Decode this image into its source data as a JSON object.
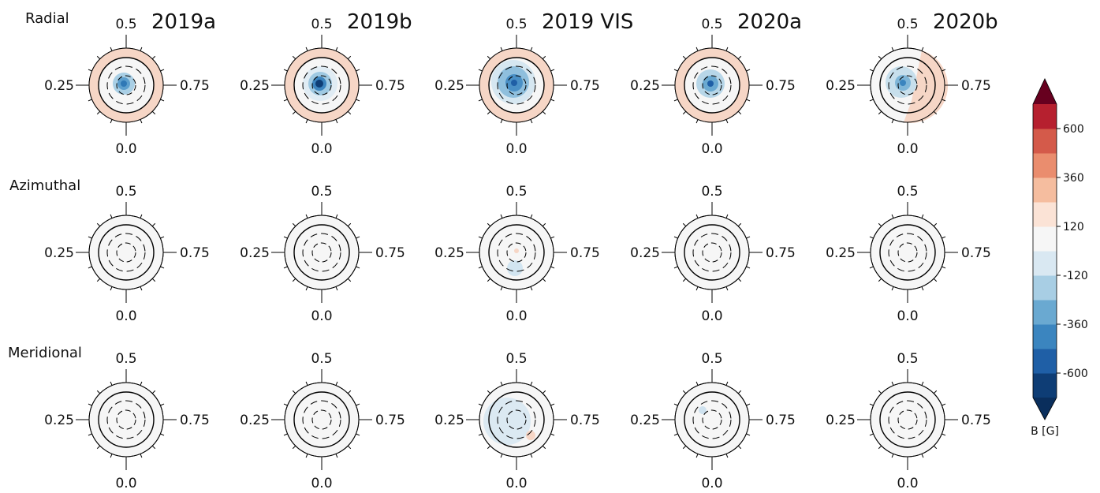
{
  "columns": [
    "2019a",
    "2019b",
    "2019 VIS",
    "2020a",
    "2020b"
  ],
  "rows": [
    "Radial",
    "Azimuthal",
    "Meridional"
  ],
  "phase_labels": {
    "top": "0.5",
    "left": "0.25",
    "right": "0.75",
    "bottom": "0.0"
  },
  "colorbar": {
    "label": "B [G]",
    "lim": [
      -720,
      720
    ],
    "ticks": [
      -600,
      -360,
      -120,
      120,
      360,
      600
    ],
    "colors": [
      "#0e3d75",
      "#1f5fa6",
      "#3b85bf",
      "#6aa9d1",
      "#a8cee4",
      "#d9e8f2",
      "#f6f6f6",
      "#fbe3d6",
      "#f5bd9f",
      "#ea8d6e",
      "#d45a4a",
      "#b6202f"
    ],
    "extend_colors": [
      "#0a2e5c",
      "#67001f"
    ]
  }
}
